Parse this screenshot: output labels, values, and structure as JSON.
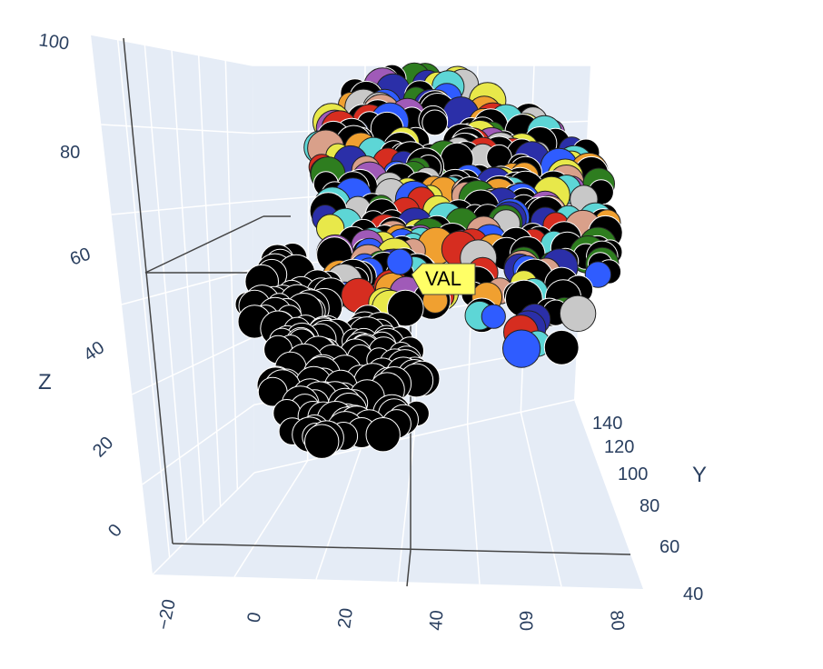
{
  "chart_data": {
    "type": "scatter3d",
    "title": "",
    "axes": {
      "x": {
        "label": "",
        "ticks": [
          "−20",
          "0",
          "20",
          "40",
          "60",
          "80"
        ]
      },
      "y": {
        "label": "Y",
        "ticks": [
          "40",
          "60",
          "80",
          "100",
          "120",
          "140"
        ]
      },
      "z": {
        "label": "Z",
        "ticks": [
          "0",
          "20",
          "40",
          "60",
          "80",
          "100"
        ]
      }
    },
    "marker_colors": [
      "#000000",
      "#2e7d1f",
      "#d62d20",
      "#2f5cff",
      "#2b2fa8",
      "#c8c8c8",
      "#e8e84a",
      "#a05ab8",
      "#5dd6d6",
      "#f0a030",
      "#d9a08a"
    ],
    "hover_label": {
      "text": "VAL",
      "background": "#ffff66"
    },
    "background": "#e5ecf6",
    "gridlines": true
  }
}
